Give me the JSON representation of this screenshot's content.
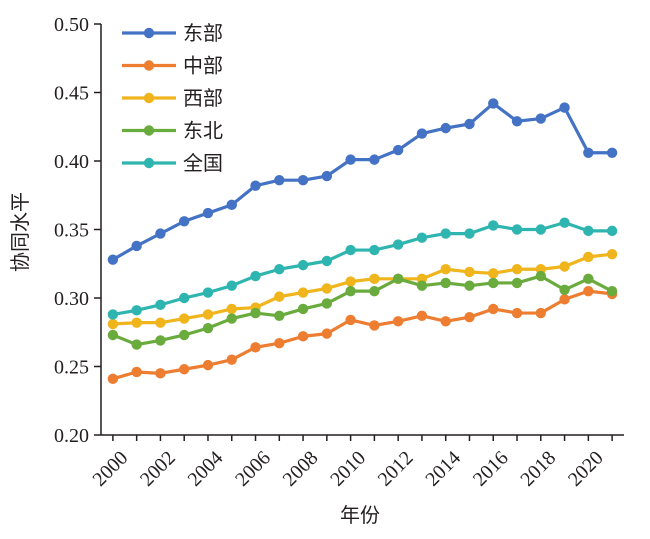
{
  "chart_data": {
    "type": "line",
    "title": "",
    "xlabel": "年份",
    "ylabel": "协同水平",
    "xlim": [
      1999.5,
      2021.5
    ],
    "ylim": [
      0.2,
      0.5
    ],
    "grid": false,
    "legend_position": "top-left",
    "x": [
      2000,
      2001,
      2002,
      2003,
      2004,
      2005,
      2006,
      2007,
      2008,
      2009,
      2010,
      2011,
      2012,
      2013,
      2014,
      2015,
      2016,
      2017,
      2018,
      2019,
      2020,
      2021
    ],
    "x_tick_labels": [
      "2000",
      "2002",
      "2004",
      "2006",
      "2008",
      "2010",
      "2012",
      "2014",
      "2016",
      "2018",
      "2020"
    ],
    "y_tick_labels": [
      "0.20",
      "0.25",
      "0.30",
      "0.35",
      "0.40",
      "0.45",
      "0.50"
    ],
    "series": [
      {
        "name": "东部",
        "color": "#4472c4",
        "values": [
          0.328,
          0.338,
          0.347,
          0.356,
          0.362,
          0.368,
          0.382,
          0.386,
          0.386,
          0.389,
          0.401,
          0.401,
          0.408,
          0.42,
          0.424,
          0.427,
          0.442,
          0.429,
          0.431,
          0.439,
          0.406,
          0.406
        ]
      },
      {
        "name": "中部",
        "color": "#ed7d31",
        "values": [
          0.241,
          0.246,
          0.245,
          0.248,
          0.251,
          0.255,
          0.264,
          0.267,
          0.272,
          0.274,
          0.284,
          0.28,
          0.283,
          0.287,
          0.283,
          0.286,
          0.292,
          0.289,
          0.289,
          0.299,
          0.305,
          0.303
        ]
      },
      {
        "name": "西部",
        "color": "#f0b51c",
        "values": [
          0.281,
          0.282,
          0.282,
          0.285,
          0.288,
          0.292,
          0.293,
          0.301,
          0.304,
          0.307,
          0.312,
          0.314,
          0.314,
          0.314,
          0.321,
          0.319,
          0.318,
          0.321,
          0.321,
          0.323,
          0.33,
          0.332
        ]
      },
      {
        "name": "东北",
        "color": "#6aab3e",
        "values": [
          0.273,
          0.266,
          0.269,
          0.273,
          0.278,
          0.285,
          0.289,
          0.287,
          0.292,
          0.296,
          0.305,
          0.305,
          0.314,
          0.309,
          0.311,
          0.309,
          0.311,
          0.311,
          0.316,
          0.306,
          0.314,
          0.305
        ]
      },
      {
        "name": "全国",
        "color": "#2fb5b0",
        "values": [
          0.288,
          0.291,
          0.295,
          0.3,
          0.304,
          0.309,
          0.316,
          0.321,
          0.324,
          0.327,
          0.335,
          0.335,
          0.339,
          0.344,
          0.347,
          0.347,
          0.353,
          0.35,
          0.35,
          0.355,
          0.349,
          0.349
        ]
      }
    ]
  }
}
